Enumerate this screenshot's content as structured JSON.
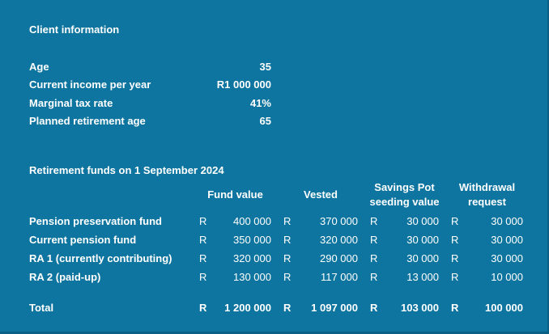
{
  "client_info": {
    "title": "Client information",
    "rows": [
      {
        "label": "Age",
        "value": "35"
      },
      {
        "label": "Current income per year",
        "value": "R1 000 000"
      },
      {
        "label": "Marginal tax rate",
        "value": "41%"
      },
      {
        "label": "Planned retirement age",
        "value": "65"
      }
    ]
  },
  "funds_table": {
    "title": "Retirement funds on 1 September 2024",
    "currency_symbol": "R",
    "columns": [
      {
        "line1": "Fund value",
        "line2": ""
      },
      {
        "line1": "Vested",
        "line2": ""
      },
      {
        "line1": "Savings Pot",
        "line2": "seeding value"
      },
      {
        "line1": "Withdrawal",
        "line2": "request"
      }
    ],
    "rows": [
      {
        "label": "Pension preservation fund",
        "values": [
          "400 000",
          "370 000",
          "30 000",
          "30 000"
        ]
      },
      {
        "label": "Current pension fund",
        "values": [
          "350 000",
          "320 000",
          "30 000",
          "30 000"
        ]
      },
      {
        "label": "RA 1 (currently contributing)",
        "values": [
          "320 000",
          "290 000",
          "30 000",
          "30 000"
        ]
      },
      {
        "label": "RA 2 (paid-up)",
        "values": [
          "130 000",
          "117 000",
          "13 000",
          "10 000"
        ]
      }
    ],
    "total": {
      "label": "Total",
      "values": [
        "1 200 000",
        "1 097 000",
        "103 000",
        "100 000"
      ]
    }
  },
  "colors": {
    "background": "#0e75a0",
    "border": "#0a5f85",
    "text": "#ffffff"
  }
}
